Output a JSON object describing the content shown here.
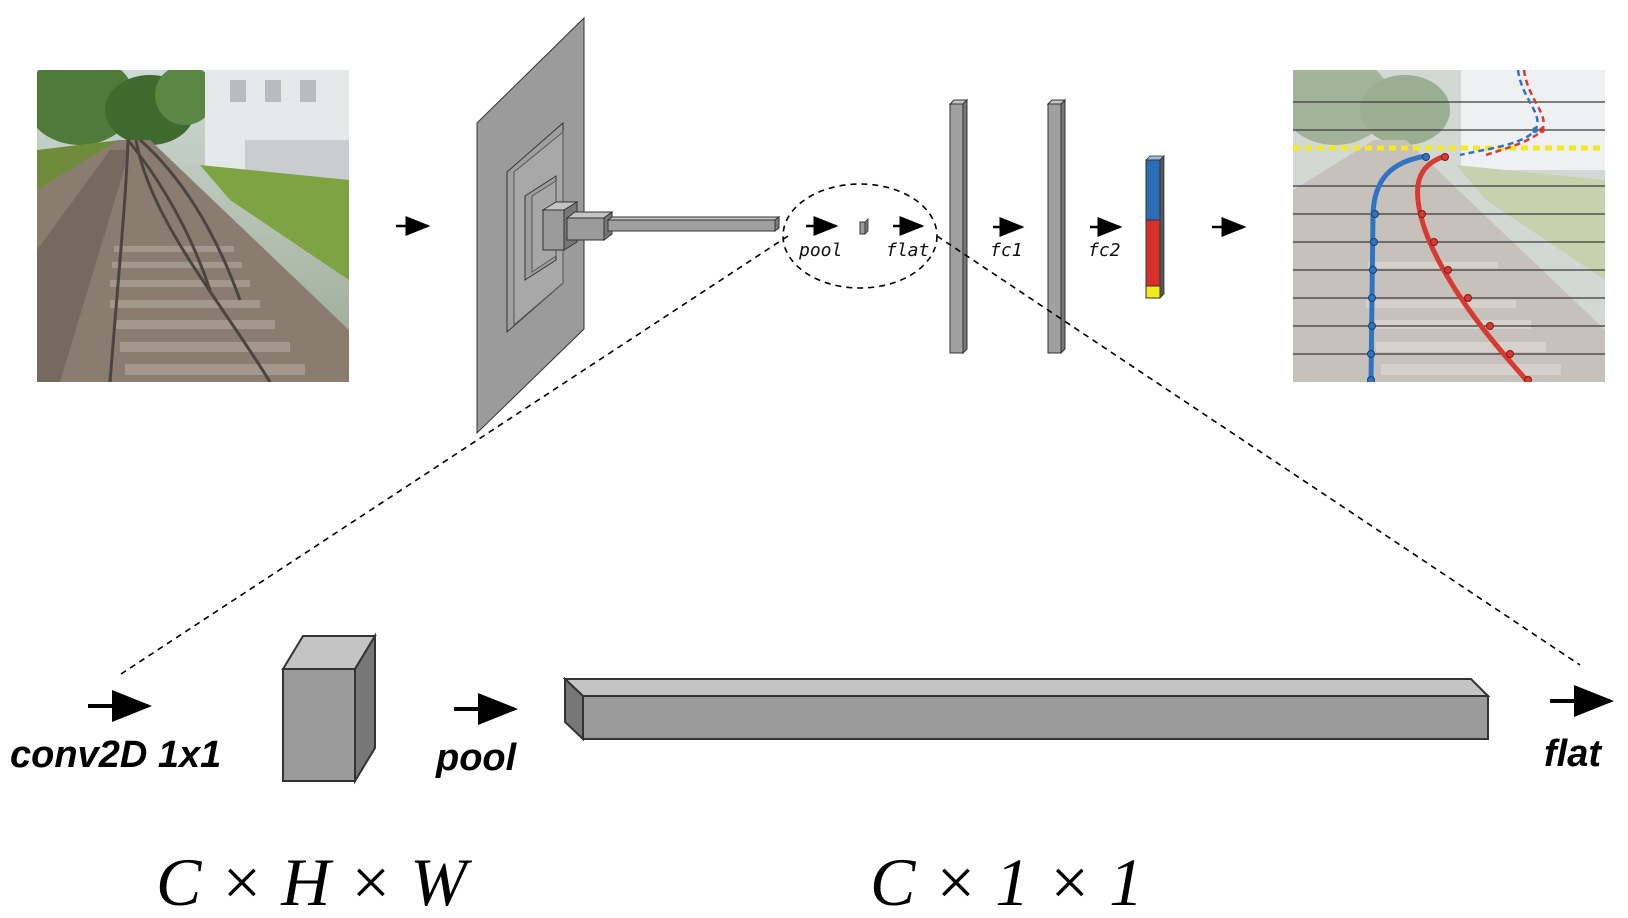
{
  "top_labels": {
    "pool": "pool",
    "flat": "flat",
    "fc1": "fc1",
    "fc2": "fc2"
  },
  "bottom_labels": {
    "conv": "conv2D 1x1",
    "pool": "pool",
    "flat": "flat"
  },
  "dims": {
    "left": "C × H × W",
    "right": "C × 1 × 1"
  },
  "colors": {
    "block": "#9b9b9b",
    "block_dark": "#6f6f6f",
    "block_light": "#c4c4c4",
    "output_blue": "#2a6db5",
    "output_red": "#d62f2a",
    "output_yellow": "#f2ea1c",
    "rail_left_curve": "#2f74c4",
    "rail_right_curve": "#d83a32",
    "horizon_line": "#f5ea1e"
  }
}
